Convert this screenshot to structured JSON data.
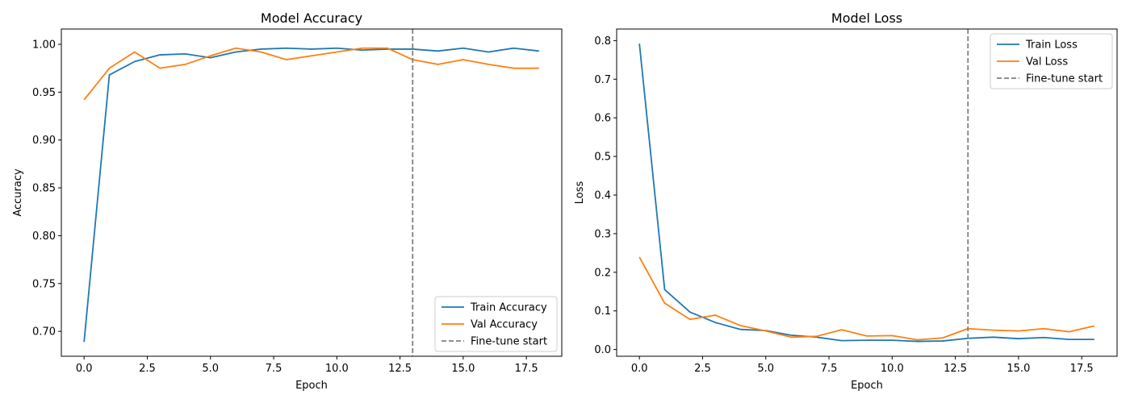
{
  "chart_data": [
    {
      "type": "line",
      "title": "Model Accuracy",
      "xlabel": "Epoch",
      "ylabel": "Accuracy",
      "xlim": [
        -0.9,
        18.9
      ],
      "ylim": [
        0.674,
        1.016
      ],
      "xticks": [
        0.0,
        2.5,
        5.0,
        7.5,
        10.0,
        12.5,
        15.0,
        17.5
      ],
      "xtick_labels": [
        "0.0",
        "2.5",
        "5.0",
        "7.5",
        "10.0",
        "12.5",
        "15.0",
        "17.5"
      ],
      "yticks": [
        0.7,
        0.75,
        0.8,
        0.85,
        0.9,
        0.95,
        1.0
      ],
      "ytick_labels": [
        "0.70",
        "0.75",
        "0.80",
        "0.85",
        "0.90",
        "0.95",
        "1.00"
      ],
      "grid": false,
      "legend_position": "lower-right",
      "x": [
        0,
        1,
        2,
        3,
        4,
        5,
        6,
        7,
        8,
        9,
        10,
        11,
        12,
        13,
        14,
        15,
        16,
        17,
        18
      ],
      "series": [
        {
          "name": "Train Accuracy",
          "color": "#1f77b4",
          "values": [
            0.689,
            0.968,
            0.982,
            0.989,
            0.99,
            0.986,
            0.992,
            0.995,
            0.996,
            0.995,
            0.996,
            0.994,
            0.995,
            0.995,
            0.993,
            0.996,
            0.992,
            0.996,
            0.993
          ]
        },
        {
          "name": "Val Accuracy",
          "color": "#ff7f0e",
          "values": [
            0.942,
            0.975,
            0.992,
            0.975,
            0.979,
            0.988,
            0.996,
            0.992,
            0.984,
            0.988,
            0.992,
            0.996,
            0.996,
            0.984,
            0.979,
            0.984,
            0.979,
            0.975,
            0.975
          ]
        }
      ],
      "vline": {
        "x": 13,
        "name": "Fine-tune start",
        "color": "#808080"
      }
    },
    {
      "type": "line",
      "title": "Model Loss",
      "xlabel": "Epoch",
      "ylabel": "Loss",
      "xlim": [
        -0.9,
        18.9
      ],
      "ylim": [
        -0.0175,
        0.83
      ],
      "xticks": [
        0.0,
        2.5,
        5.0,
        7.5,
        10.0,
        12.5,
        15.0,
        17.5
      ],
      "xtick_labels": [
        "0.0",
        "2.5",
        "5.0",
        "7.5",
        "10.0",
        "12.5",
        "15.0",
        "17.5"
      ],
      "yticks": [
        0.0,
        0.1,
        0.2,
        0.3,
        0.4,
        0.5,
        0.6,
        0.7,
        0.8
      ],
      "ytick_labels": [
        "0.0",
        "0.1",
        "0.2",
        "0.3",
        "0.4",
        "0.5",
        "0.6",
        "0.7",
        "0.8"
      ],
      "grid": false,
      "legend_position": "upper-right",
      "x": [
        0,
        1,
        2,
        3,
        4,
        5,
        6,
        7,
        8,
        9,
        10,
        11,
        12,
        13,
        14,
        15,
        16,
        17,
        18
      ],
      "series": [
        {
          "name": "Train Loss",
          "color": "#1f77b4",
          "values": [
            0.792,
            0.155,
            0.097,
            0.07,
            0.052,
            0.049,
            0.037,
            0.032,
            0.023,
            0.024,
            0.024,
            0.021,
            0.022,
            0.029,
            0.032,
            0.028,
            0.031,
            0.026,
            0.026
          ]
        },
        {
          "name": "Val Loss",
          "color": "#ff7f0e",
          "values": [
            0.239,
            0.12,
            0.078,
            0.089,
            0.062,
            0.048,
            0.032,
            0.034,
            0.051,
            0.035,
            0.036,
            0.025,
            0.03,
            0.054,
            0.05,
            0.048,
            0.054,
            0.046,
            0.061
          ]
        }
      ],
      "vline": {
        "x": 13,
        "name": "Fine-tune start",
        "color": "#808080"
      }
    }
  ]
}
